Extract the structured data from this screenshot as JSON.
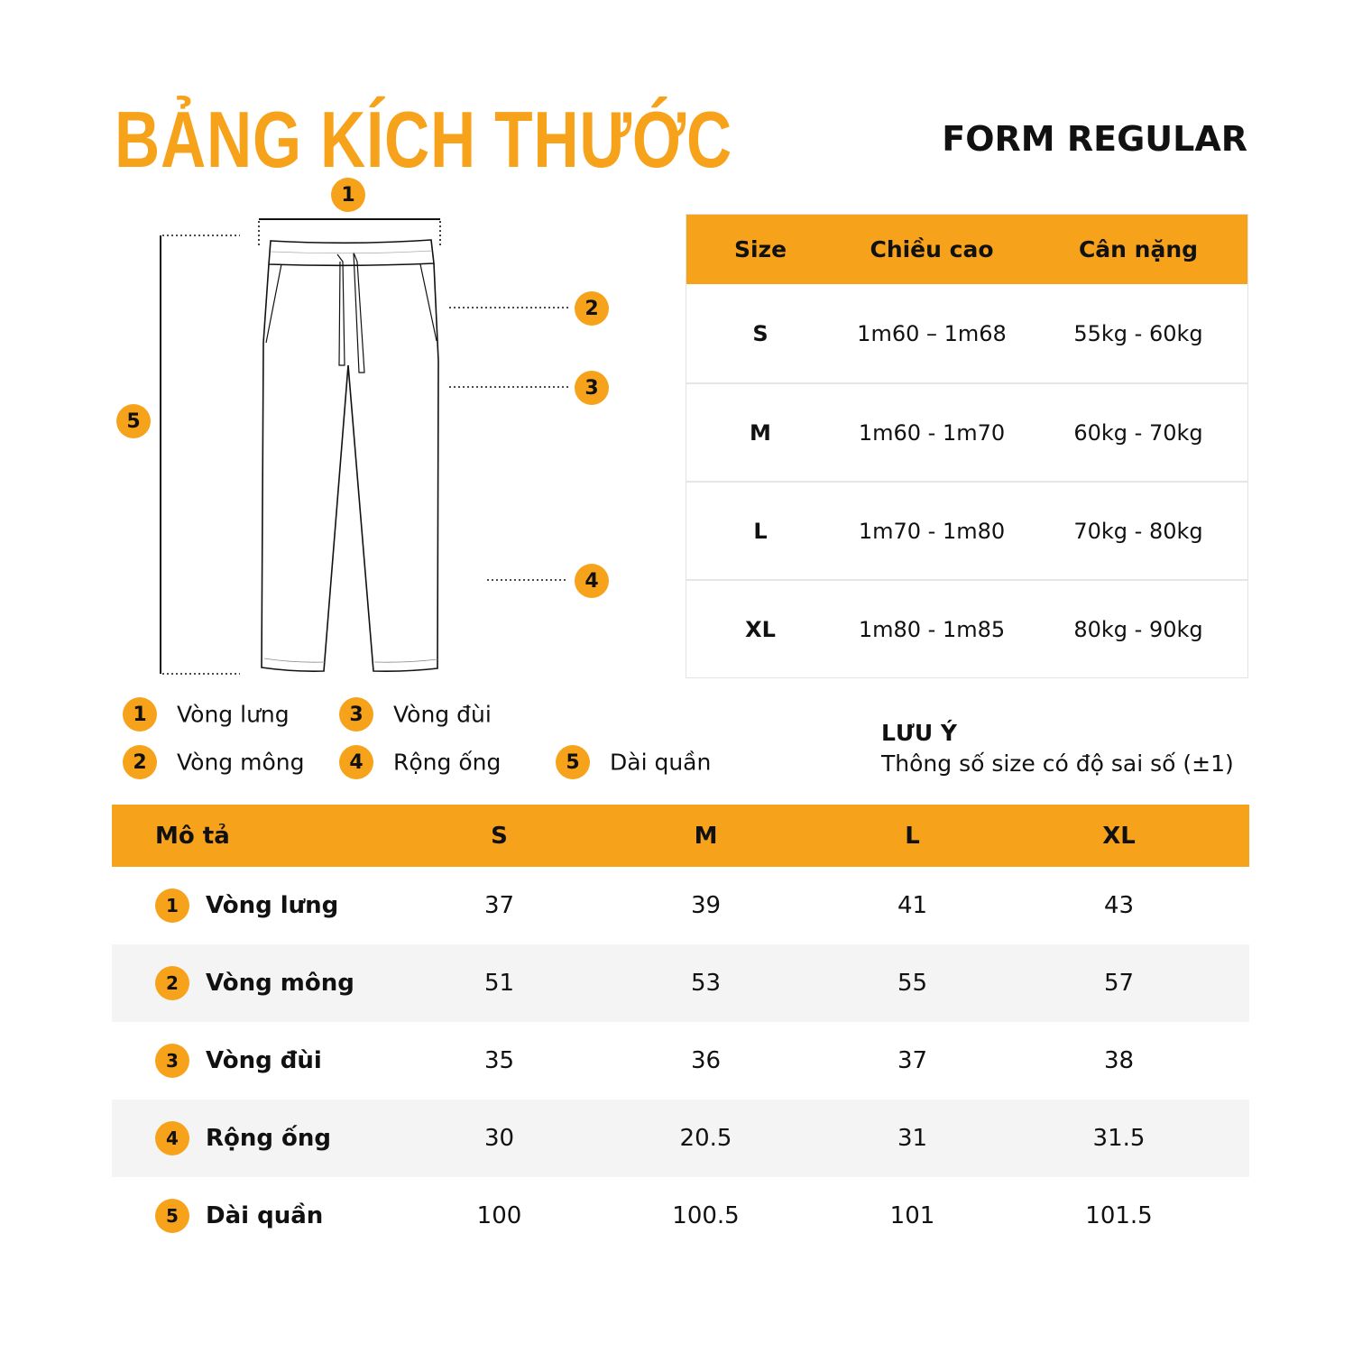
{
  "title": "BẢNG KÍCH THƯỚC",
  "form": "FORM REGULAR",
  "accent_color": "#F7A21B",
  "diagram_badges": [
    "1",
    "2",
    "3",
    "4",
    "5"
  ],
  "legend": [
    {
      "num": "1",
      "label": "Vòng lưng"
    },
    {
      "num": "3",
      "label": "Vòng đùi"
    },
    {
      "num": "2",
      "label": "Vòng mông"
    },
    {
      "num": "4",
      "label": "Rộng ống"
    },
    {
      "num": "5",
      "label": "Dài quần"
    }
  ],
  "size_table": {
    "headers": [
      "Size",
      "Chiều cao",
      "Cân nặng"
    ],
    "rows": [
      [
        "S",
        "1m60 – 1m68",
        "55kg - 60kg"
      ],
      [
        "M",
        "1m60 - 1m70",
        "60kg - 70kg"
      ],
      [
        "L",
        "1m70 - 1m80",
        "70kg - 80kg"
      ],
      [
        "XL",
        "1m80 - 1m85",
        "80kg - 90kg"
      ]
    ]
  },
  "note": {
    "title": "LƯU Ý",
    "text": "Thông số size có độ sai số (±1)"
  },
  "measure_table": {
    "headers": [
      "Mô tả",
      "S",
      "M",
      "L",
      "XL"
    ],
    "rows": [
      {
        "num": "1",
        "label": "Vòng lưng",
        "values": [
          "37",
          "39",
          "41",
          "43"
        ]
      },
      {
        "num": "2",
        "label": "Vòng mông",
        "values": [
          "51",
          "53",
          "55",
          "57"
        ]
      },
      {
        "num": "3",
        "label": "Vòng đùi",
        "values": [
          "35",
          "36",
          "37",
          "38"
        ]
      },
      {
        "num": "4",
        "label": "Rộng ống",
        "values": [
          "30",
          "20.5",
          "31",
          "31.5"
        ]
      },
      {
        "num": "5",
        "label": "Dài quần",
        "values": [
          "100",
          "100.5",
          "101",
          "101.5"
        ]
      }
    ]
  }
}
